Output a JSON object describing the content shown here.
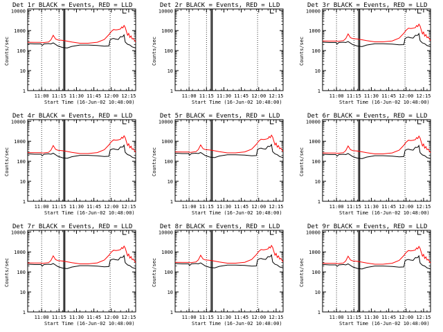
{
  "panel_titles": [
    "Det 1r BLACK = Events, RED = LLD",
    "Det 2r BLACK = Events, RED = LLD",
    "Det 3r BLACK = Events, RED = LLD",
    "Det 4r BLACK = Events, RED = LLD",
    "Det 5r BLACK = Events, RED = LLD",
    "Det 6r BLACK = Events, RED = LLD",
    "Det 7r BLACK = Events, RED = LLD",
    "Det 8r BLACK = Events, RED = LLD",
    "Det 9r BLACK = Events, RED = LLD"
  ],
  "ylabel": "Counts/sec",
  "xlabel": "Start Time (16-Jun-02 10:48:00)",
  "xtick_labels": [
    "11:00",
    "11:15",
    "11:30",
    "11:45",
    "12:00",
    "12:15"
  ],
  "ytick_labels": [
    "1",
    "10",
    "100",
    "1000",
    "10000"
  ],
  "colors": {
    "events": "#000000",
    "lld": "#ff0000",
    "background": "#ffffff"
  },
  "chart_data": {
    "type": "line",
    "layout": "3x3 grid",
    "scale_y": "log",
    "ylim": [
      1,
      12000
    ],
    "xlim_minutes_after_start": [
      0,
      93
    ],
    "x_time_labels": [
      "11:00",
      "11:15",
      "11:30",
      "11:45",
      "12:00",
      "12:15"
    ],
    "x_time_minutes": [
      12,
      27,
      42,
      57,
      72,
      87
    ],
    "vertical_dotted_lines_minutes": [
      12,
      27,
      71
    ],
    "vertical_solid_lines_minutes": [
      31,
      32
    ],
    "series": [
      {
        "name": "BLACK = Events",
        "color": "#000000",
        "x": [
          0,
          6,
          11.5,
          12.5,
          14,
          18,
          20,
          22,
          26,
          30,
          34,
          38,
          45,
          52,
          60,
          66,
          70,
          71,
          72.5,
          74,
          75.5,
          78,
          80,
          81,
          82,
          83,
          84,
          86,
          88,
          90,
          93
        ],
        "y": [
          250,
          240,
          240,
          200,
          240,
          250,
          240,
          270,
          190,
          160,
          150,
          180,
          210,
          210,
          200,
          185,
          190,
          380,
          430,
          450,
          420,
          400,
          560,
          540,
          560,
          680,
          300,
          230,
          210,
          170,
          150
        ]
      },
      {
        "name": "RED = LLD",
        "color": "#ff0000",
        "x": [
          0,
          6,
          11.5,
          12.5,
          14,
          18,
          20,
          22,
          24,
          26,
          30,
          34,
          38,
          45,
          52,
          60,
          66,
          70,
          72,
          74,
          76,
          78,
          80,
          81,
          82,
          83,
          84,
          86,
          87,
          88,
          89,
          90,
          91,
          93
        ],
        "y": [
          290,
          285,
          285,
          275,
          280,
          300,
          380,
          650,
          420,
          380,
          360,
          330,
          300,
          260,
          260,
          290,
          400,
          700,
          1000,
          1250,
          1200,
          1250,
          1350,
          1700,
          1500,
          2000,
          1600,
          650,
          800,
          500,
          600,
          420,
          450,
          300
        ]
      }
    ],
    "note_panels_without_data": [
      2
    ]
  }
}
